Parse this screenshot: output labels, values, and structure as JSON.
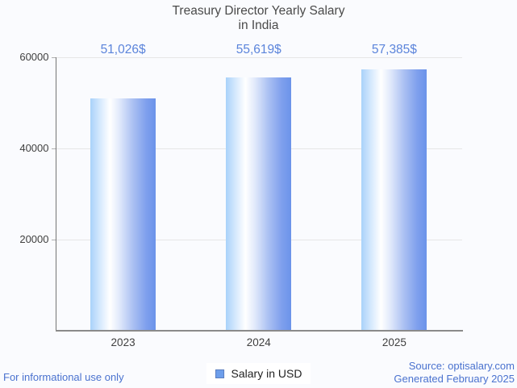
{
  "title": {
    "line1": "Treasury Director Yearly Salary",
    "line2": "in India"
  },
  "chart_data": {
    "type": "bar",
    "categories": [
      "2023",
      "2024",
      "2025"
    ],
    "series": [
      {
        "name": "Salary in USD",
        "values": [
          51026,
          55619,
          57385
        ]
      }
    ],
    "bar_labels": [
      "51,026$",
      "55,619$",
      "57,385$"
    ],
    "title": "Treasury Director Yearly Salary in India",
    "xlabel": "",
    "ylabel": "",
    "ylim": [
      0,
      60000
    ],
    "yticks": [
      20000,
      40000,
      60000
    ],
    "ytick_labels": [
      "20000",
      "40000",
      "60000"
    ],
    "grid": true,
    "legend_position": "bottom"
  },
  "legend": {
    "label": "Salary in USD"
  },
  "footer": {
    "left": "For informational use only",
    "source": "Source: optisalary.com",
    "generated": "Generated February 2025"
  },
  "colors": {
    "background": "#fafbfe",
    "title_text": "#4a4a4a",
    "axis_text": "#3f3f3f",
    "data_label_blue": "#5b84db",
    "footer_blue": "#4a72cf",
    "legend_marker_fill": "#6d9eeb",
    "legend_marker_border": "#5c7fc0",
    "bar_gradient_left": "#a9d2fa",
    "bar_gradient_mid": "#ffffff",
    "bar_gradient_right": "#6b93ea",
    "gridline": "#e6e6e6",
    "axis_line": "#757575"
  }
}
